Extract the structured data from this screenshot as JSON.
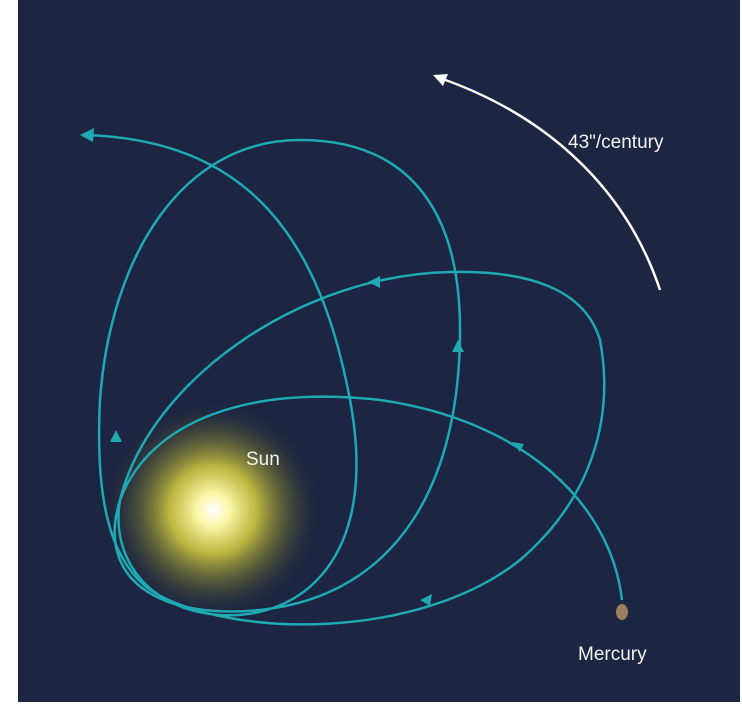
{
  "labels": {
    "sun": "Sun",
    "planet": "Mercury",
    "precession": "43\"/century"
  }
}
